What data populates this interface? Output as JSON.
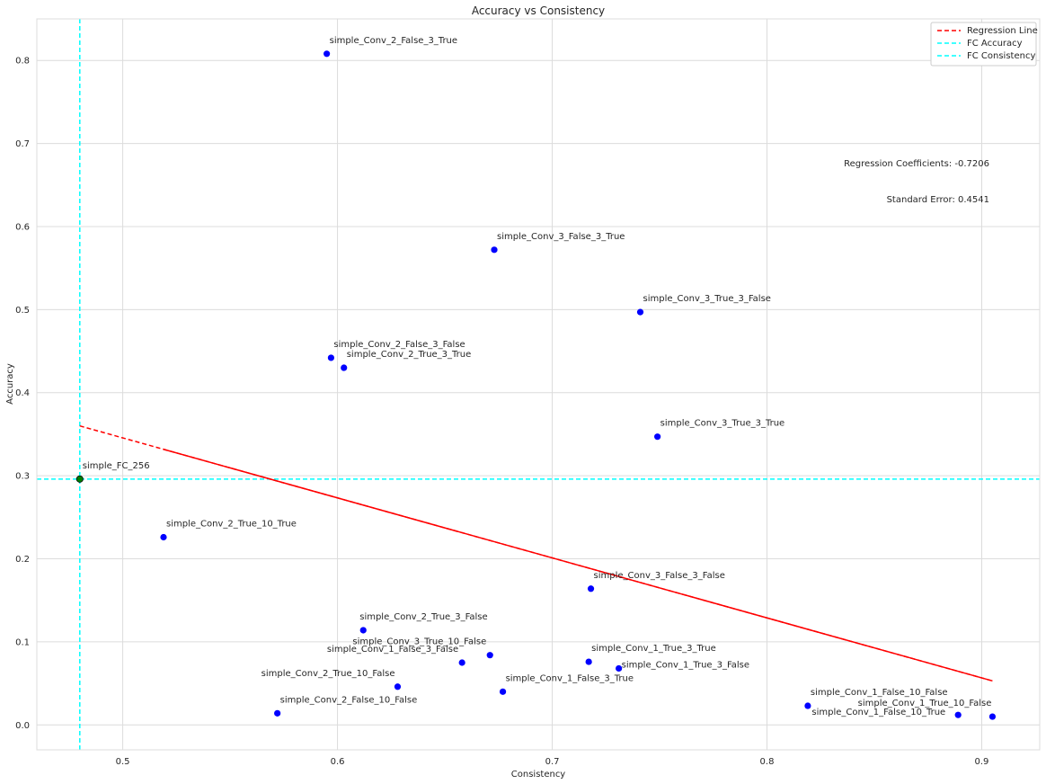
{
  "chart_data": {
    "type": "scatter",
    "title": "Accuracy vs Consistency",
    "xlabel": "Consistency",
    "ylabel": "Accuracy",
    "xlim": [
      0.46,
      0.927
    ],
    "ylim": [
      -0.03,
      0.85
    ],
    "xticks": [
      "0.5",
      "0.6",
      "0.7",
      "0.8",
      "0.9"
    ],
    "yticks": [
      "0.0",
      "0.1",
      "0.2",
      "0.3",
      "0.4",
      "0.5",
      "0.6",
      "0.7",
      "0.8"
    ],
    "grid": true,
    "legend_position": "top-right",
    "legend": [
      "Regression Line",
      "FC Accuracy",
      "FC Consistency"
    ],
    "points": [
      {
        "label": "simple_Conv_2_False_3_True",
        "x": 0.595,
        "y": 0.808,
        "color": "#0000ff"
      },
      {
        "label": "simple_Conv_3_False_3_True",
        "x": 0.673,
        "y": 0.572,
        "color": "#0000ff"
      },
      {
        "label": "simple_Conv_3_True_3_False",
        "x": 0.741,
        "y": 0.497,
        "color": "#0000ff"
      },
      {
        "label": "simple_Conv_2_False_3_False",
        "x": 0.597,
        "y": 0.442,
        "color": "#0000ff"
      },
      {
        "label": "simple_Conv_2_True_3_True",
        "x": 0.603,
        "y": 0.43,
        "color": "#0000ff"
      },
      {
        "label": "simple_Conv_3_True_3_True",
        "x": 0.749,
        "y": 0.347,
        "color": "#0000ff"
      },
      {
        "label": "simple_FC_256",
        "x": 0.48,
        "y": 0.296,
        "color": "#008000"
      },
      {
        "label": "simple_Conv_2_True_10_True",
        "x": 0.519,
        "y": 0.226,
        "color": "#0000ff"
      },
      {
        "label": "simple_Conv_3_False_3_False",
        "x": 0.718,
        "y": 0.164,
        "color": "#0000ff"
      },
      {
        "label": "simple_Conv_2_True_3_False",
        "x": 0.612,
        "y": 0.114,
        "color": "#0000ff"
      },
      {
        "label": "simple_Conv_3_True_10_False",
        "x": 0.671,
        "y": 0.084,
        "color": "#0000ff"
      },
      {
        "label": "simple_Conv_1_True_3_True",
        "x": 0.717,
        "y": 0.076,
        "color": "#0000ff"
      },
      {
        "label": "simple_Conv_1_False_3_False",
        "x": 0.658,
        "y": 0.075,
        "color": "#0000ff"
      },
      {
        "label": "simple_Conv_1_True_3_False",
        "x": 0.731,
        "y": 0.068,
        "color": "#0000ff"
      },
      {
        "label": "simple_Conv_2_True_10_False",
        "x": 0.628,
        "y": 0.046,
        "color": "#0000ff"
      },
      {
        "label": "simple_Conv_1_False_3_True",
        "x": 0.677,
        "y": 0.04,
        "color": "#0000ff"
      },
      {
        "label": "simple_Conv_1_False_10_False",
        "x": 0.819,
        "y": 0.023,
        "color": "#0000ff"
      },
      {
        "label": "simple_Conv_2_False_10_False",
        "x": 0.572,
        "y": 0.014,
        "color": "#0000ff"
      },
      {
        "label": "simple_Conv_1_False_10_True",
        "x": 0.889,
        "y": 0.012,
        "color": "#0000ff"
      },
      {
        "label": "simple_Conv_1_True_10_False",
        "x": 0.905,
        "y": 0.01,
        "color": "#0000ff"
      }
    ],
    "regression_line": {
      "x": [
        0.48,
        0.905
      ],
      "y": [
        0.36,
        0.053
      ],
      "color": "#ff0000",
      "style": "dashed"
    },
    "fc_accuracy": {
      "y": 0.296,
      "color": "#00ffff",
      "style": "dashed"
    },
    "fc_consistency": {
      "x": 0.48,
      "color": "#00ffff",
      "style": "dashed"
    },
    "annotations": [
      "Regression Coefficients: -0.7206",
      "Standard Error: 0.4541"
    ]
  }
}
